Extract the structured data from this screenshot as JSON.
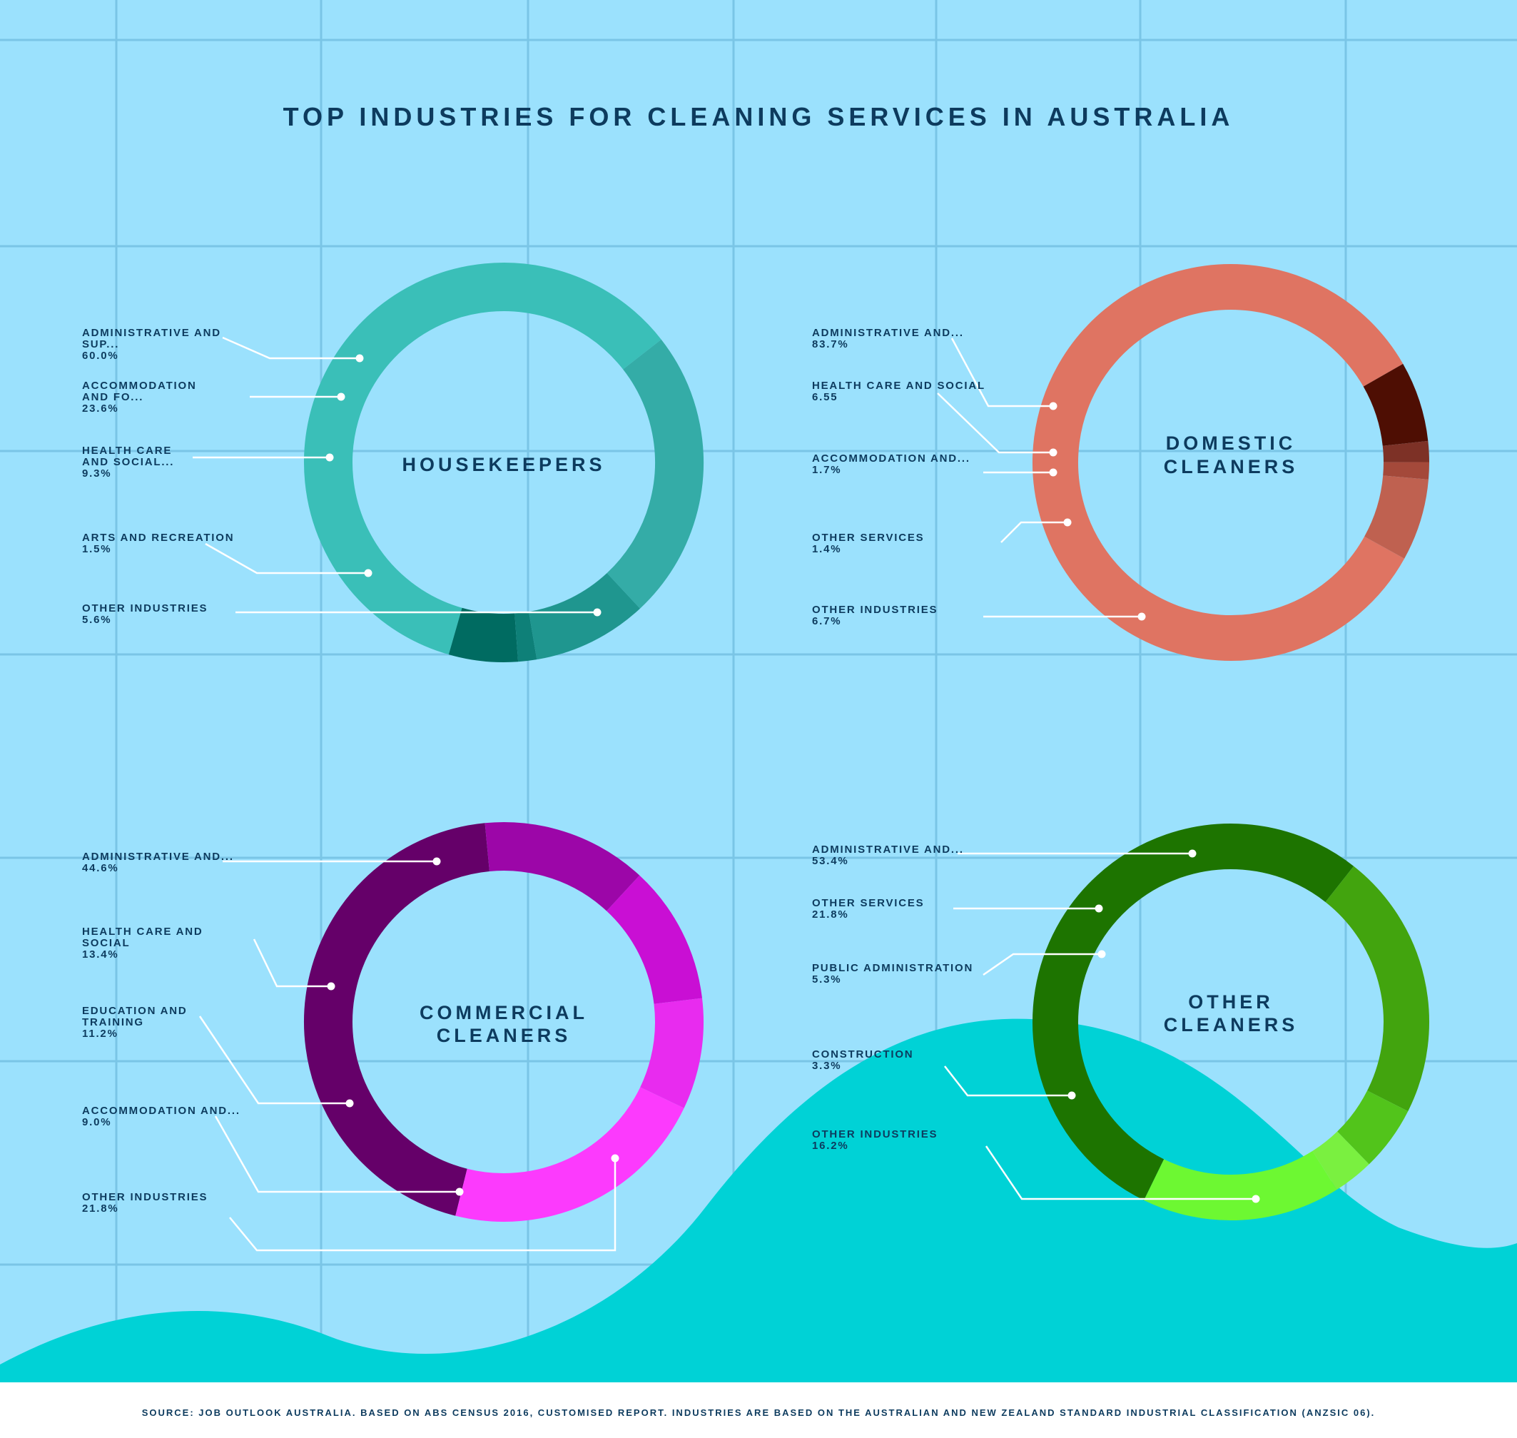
{
  "title": "TOP INDUSTRIES FOR CLEANING SERVICES IN AUSTRALIA",
  "source": "SOURCE: JOB OUTLOOK AUSTRALIA. BASED ON ABS CENSUS 2016, CUSTOMISED REPORT. INDUSTRIES ARE BASED ON THE AUSTRALIAN AND NEW ZEALAND STANDARD INDUSTRIAL CLASSIFICATION (ANZSIC 06).",
  "colors": {
    "background": "#9be1fd",
    "wave": "#00d2d6",
    "text": "#0d3b5e"
  },
  "chart_data": [
    {
      "type": "pie",
      "title": [
        "HOUSEKEEPERS"
      ],
      "slices": [
        {
          "label": [
            "ADMINISTRATIVE AND",
            "SUP..."
          ],
          "value_text": "60.0%",
          "value": 60.0,
          "color": "#3abfb8"
        },
        {
          "label": [
            "ACCOMMODATION",
            "AND FO..."
          ],
          "value_text": "23.6%",
          "value": 23.6,
          "color": "#34aca7"
        },
        {
          "label": [
            "HEALTH CARE",
            "AND SOCIAL..."
          ],
          "value_text": "9.3%",
          "value": 9.3,
          "color": "#1f968f"
        },
        {
          "label": [
            "ARTS AND RECREATION"
          ],
          "value_text": "1.5%",
          "value": 1.5,
          "color": "#0e8078"
        },
        {
          "label": [
            "OTHER INDUSTRIES"
          ],
          "value_text": "5.6%",
          "value": 5.6,
          "color": "#006b61"
        }
      ]
    },
    {
      "type": "pie",
      "title": [
        "DOMESTIC",
        "CLEANERS"
      ],
      "slices": [
        {
          "label": [
            "ADMINISTRATIVE AND..."
          ],
          "value_text": "83.7%",
          "value": 83.7,
          "color": "#df7462"
        },
        {
          "label": [
            "HEALTH CARE AND SOCIAL"
          ],
          "value_text": "6.55",
          "value": 6.55,
          "color": "#4e0e03"
        },
        {
          "label": [
            "ACCOMMODATION AND..."
          ],
          "value_text": "1.7%",
          "value": 1.7,
          "color": "#7d3126"
        },
        {
          "label": [
            "OTHER SERVICES"
          ],
          "value_text": "1.4%",
          "value": 1.4,
          "color": "#a4493a"
        },
        {
          "label": [
            "OTHER INDUSTRIES"
          ],
          "value_text": "6.7%",
          "value": 6.7,
          "color": "#bf6150"
        }
      ]
    },
    {
      "type": "pie",
      "title": [
        "COMMERCIAL",
        "CLEANERS"
      ],
      "slices": [
        {
          "label": [
            "ADMINISTRATIVE AND..."
          ],
          "value_text": "44.6%",
          "value": 44.6,
          "color": "#650069"
        },
        {
          "label": [
            "HEALTH CARE AND",
            "SOCIAL"
          ],
          "value_text": "13.4%",
          "value": 13.4,
          "color": "#9c06a8"
        },
        {
          "label": [
            "EDUCATION AND",
            "TRAINING"
          ],
          "value_text": "11.2%",
          "value": 11.2,
          "color": "#c90fd4"
        },
        {
          "label": [
            "ACCOMMODATION AND..."
          ],
          "value_text": "9.0%",
          "value": 9.0,
          "color": "#e82bef"
        },
        {
          "label": [
            "OTHER INDUSTRIES"
          ],
          "value_text": "21.8%",
          "value": 21.8,
          "color": "#fc3afd"
        }
      ]
    },
    {
      "type": "pie",
      "title": [
        "OTHER",
        "CLEANERS"
      ],
      "slices": [
        {
          "label": [
            "ADMINISTRATIVE AND..."
          ],
          "value_text": "53.4%",
          "value": 53.4,
          "color": "#1d7400"
        },
        {
          "label": [
            "OTHER SERVICES"
          ],
          "value_text": "21.8%",
          "value": 21.8,
          "color": "#42a40e"
        },
        {
          "label": [
            "PUBLIC ADMINISTRATION"
          ],
          "value_text": "5.3%",
          "value": 5.3,
          "color": "#52c41b"
        },
        {
          "label": [
            "CONSTRUCTION"
          ],
          "value_text": "3.3%",
          "value": 3.3,
          "color": "#7af040"
        },
        {
          "label": [
            "OTHER INDUSTRIES"
          ],
          "value_text": "16.2%",
          "value": 16.2,
          "color": "#6df832"
        }
      ]
    }
  ]
}
